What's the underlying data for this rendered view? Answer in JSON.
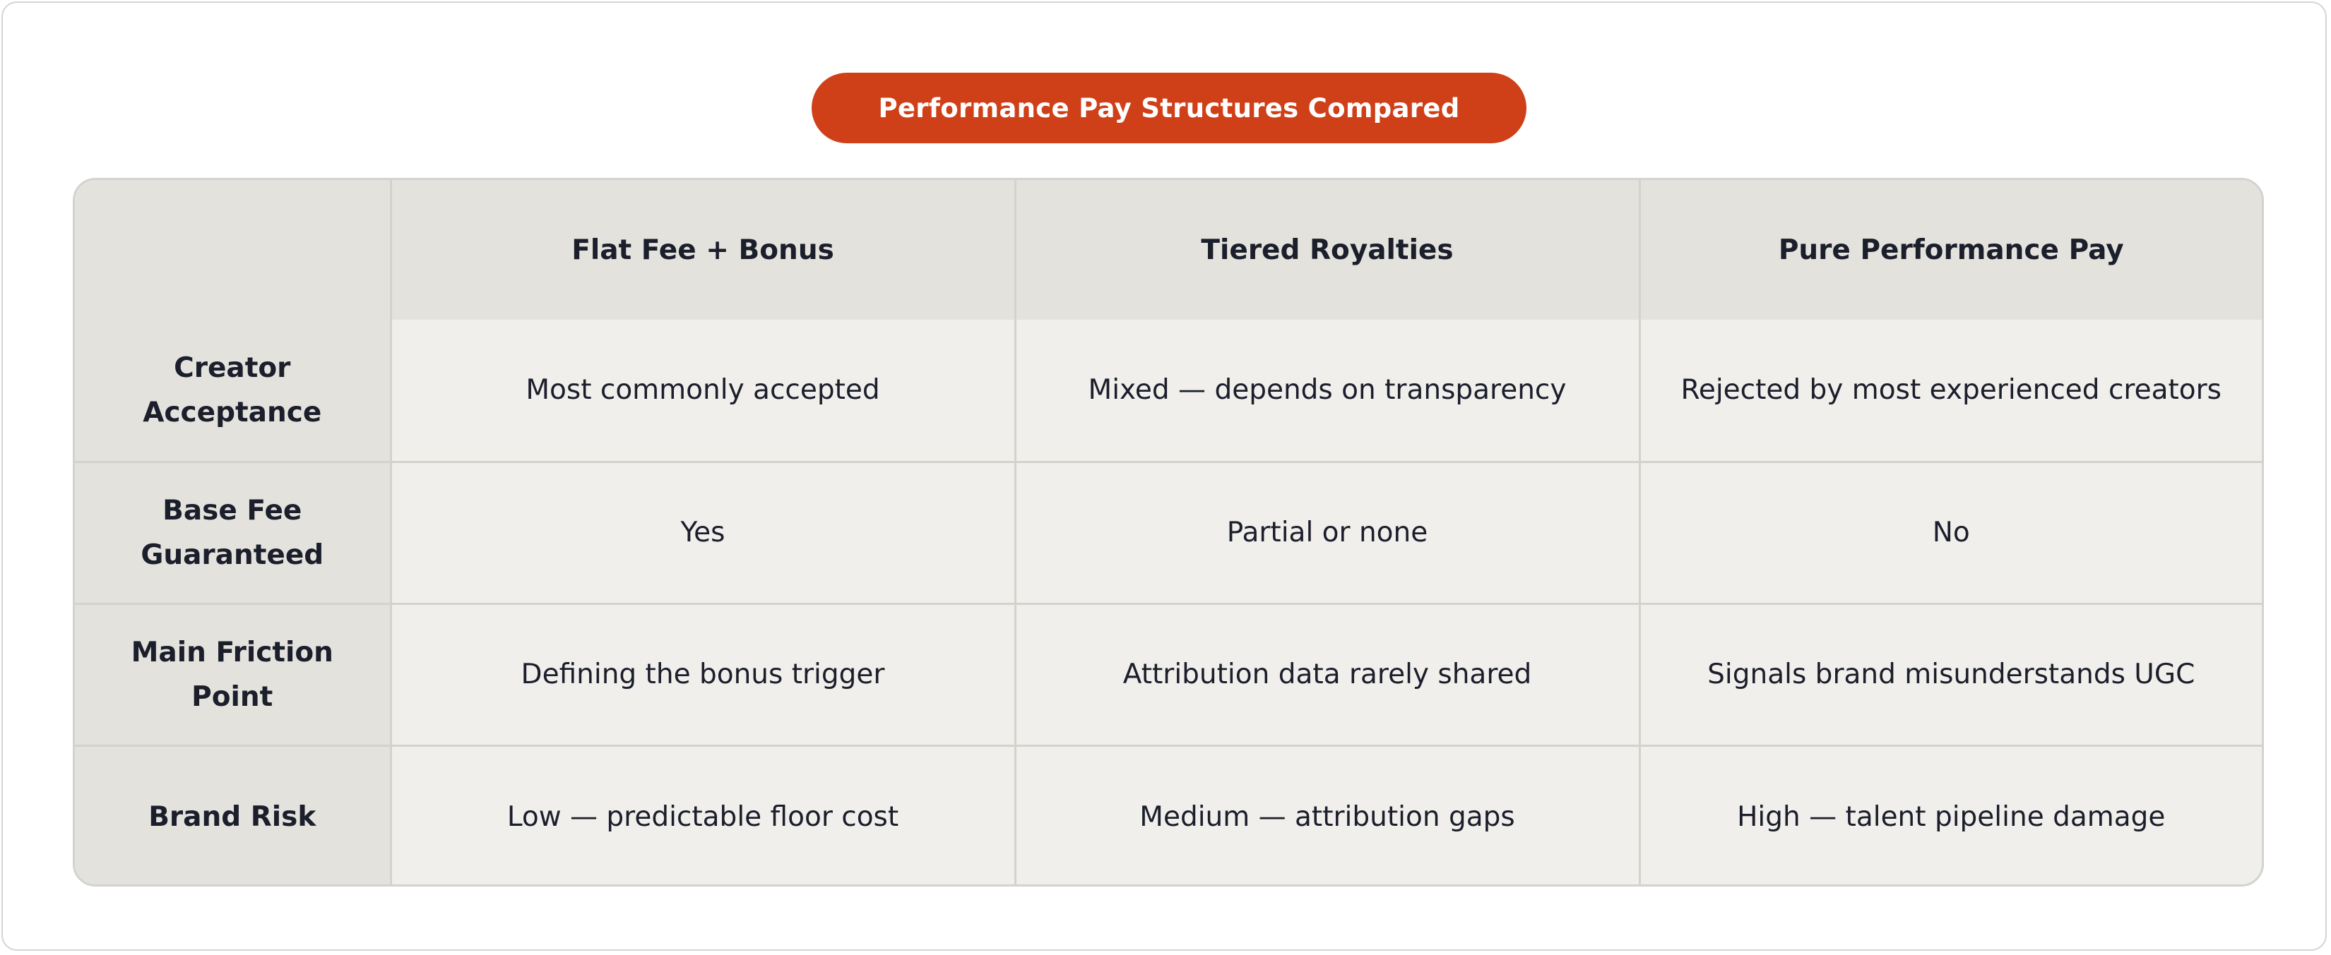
{
  "title": "Performance Pay Structures Compared",
  "table": {
    "corner": "",
    "columns": [
      "Flat Fee + Bonus",
      "Tiered Royalties",
      "Pure Performance Pay"
    ],
    "rows": [
      {
        "label": "Creator Acceptance",
        "cells": [
          "Most commonly accepted",
          "Mixed — depends on transparency",
          "Rejected by most experienced creators"
        ]
      },
      {
        "label": "Base Fee Guaranteed",
        "cells": [
          "Yes",
          "Partial or none",
          "No"
        ]
      },
      {
        "label": "Main Friction Point",
        "cells": [
          "Defining the bonus trigger",
          "Attribution data rarely shared",
          "Signals brand misunderstands UGC"
        ]
      },
      {
        "label": "Brand Risk",
        "cells": [
          "Low — predictable floor cost",
          "Medium — attribution gaps",
          "High — talent pipeline damage"
        ]
      }
    ]
  },
  "colors": {
    "accent": "#cf4019",
    "header_bg": "#e3e2dd",
    "cell_bg": "#f0efeb",
    "border": "#d3d2cd",
    "text": "#1b1e2b"
  }
}
